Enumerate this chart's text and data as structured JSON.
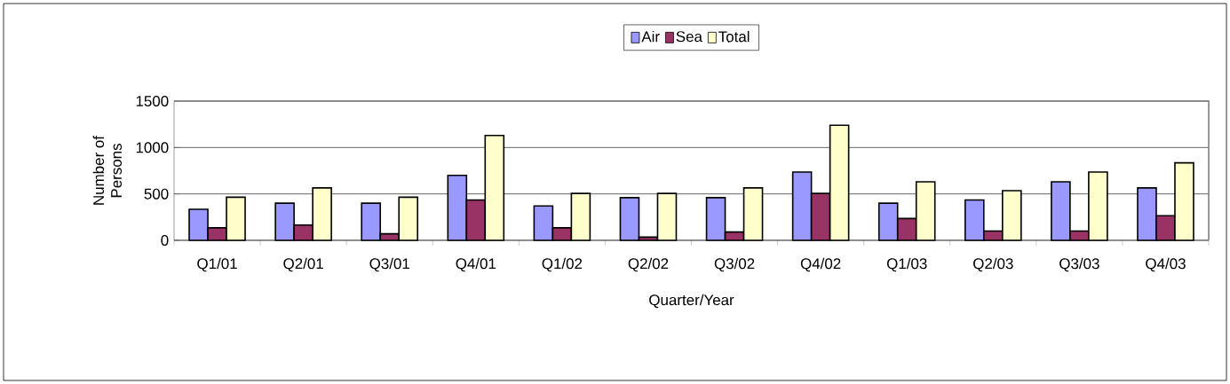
{
  "chart_data": {
    "type": "bar",
    "xlabel": "Quarter/Year",
    "ylabel": "Number of Persons",
    "categories": [
      "Q1/01",
      "Q2/01",
      "Q3/01",
      "Q4/01",
      "Q1/02",
      "Q2/02",
      "Q3/02",
      "Q4/02",
      "Q1/03",
      "Q2/03",
      "Q3/03",
      "Q4/03"
    ],
    "series": [
      {
        "name": "Air",
        "color": "#9999ff",
        "values": [
          335,
          400,
          400,
          700,
          370,
          460,
          460,
          735,
          400,
          435,
          630,
          565
        ]
      },
      {
        "name": "Sea",
        "color": "#993366",
        "values": [
          135,
          165,
          70,
          435,
          135,
          35,
          90,
          505,
          235,
          100,
          100,
          265
        ]
      },
      {
        "name": "Total",
        "color": "#ffffcc",
        "values": [
          465,
          565,
          465,
          1130,
          505,
          505,
          565,
          1240,
          630,
          535,
          735,
          835
        ]
      }
    ],
    "ylim": [
      0,
      1500
    ],
    "yticks": [
      0,
      500,
      1000,
      1500
    ],
    "grid": "y",
    "legend": "top"
  }
}
